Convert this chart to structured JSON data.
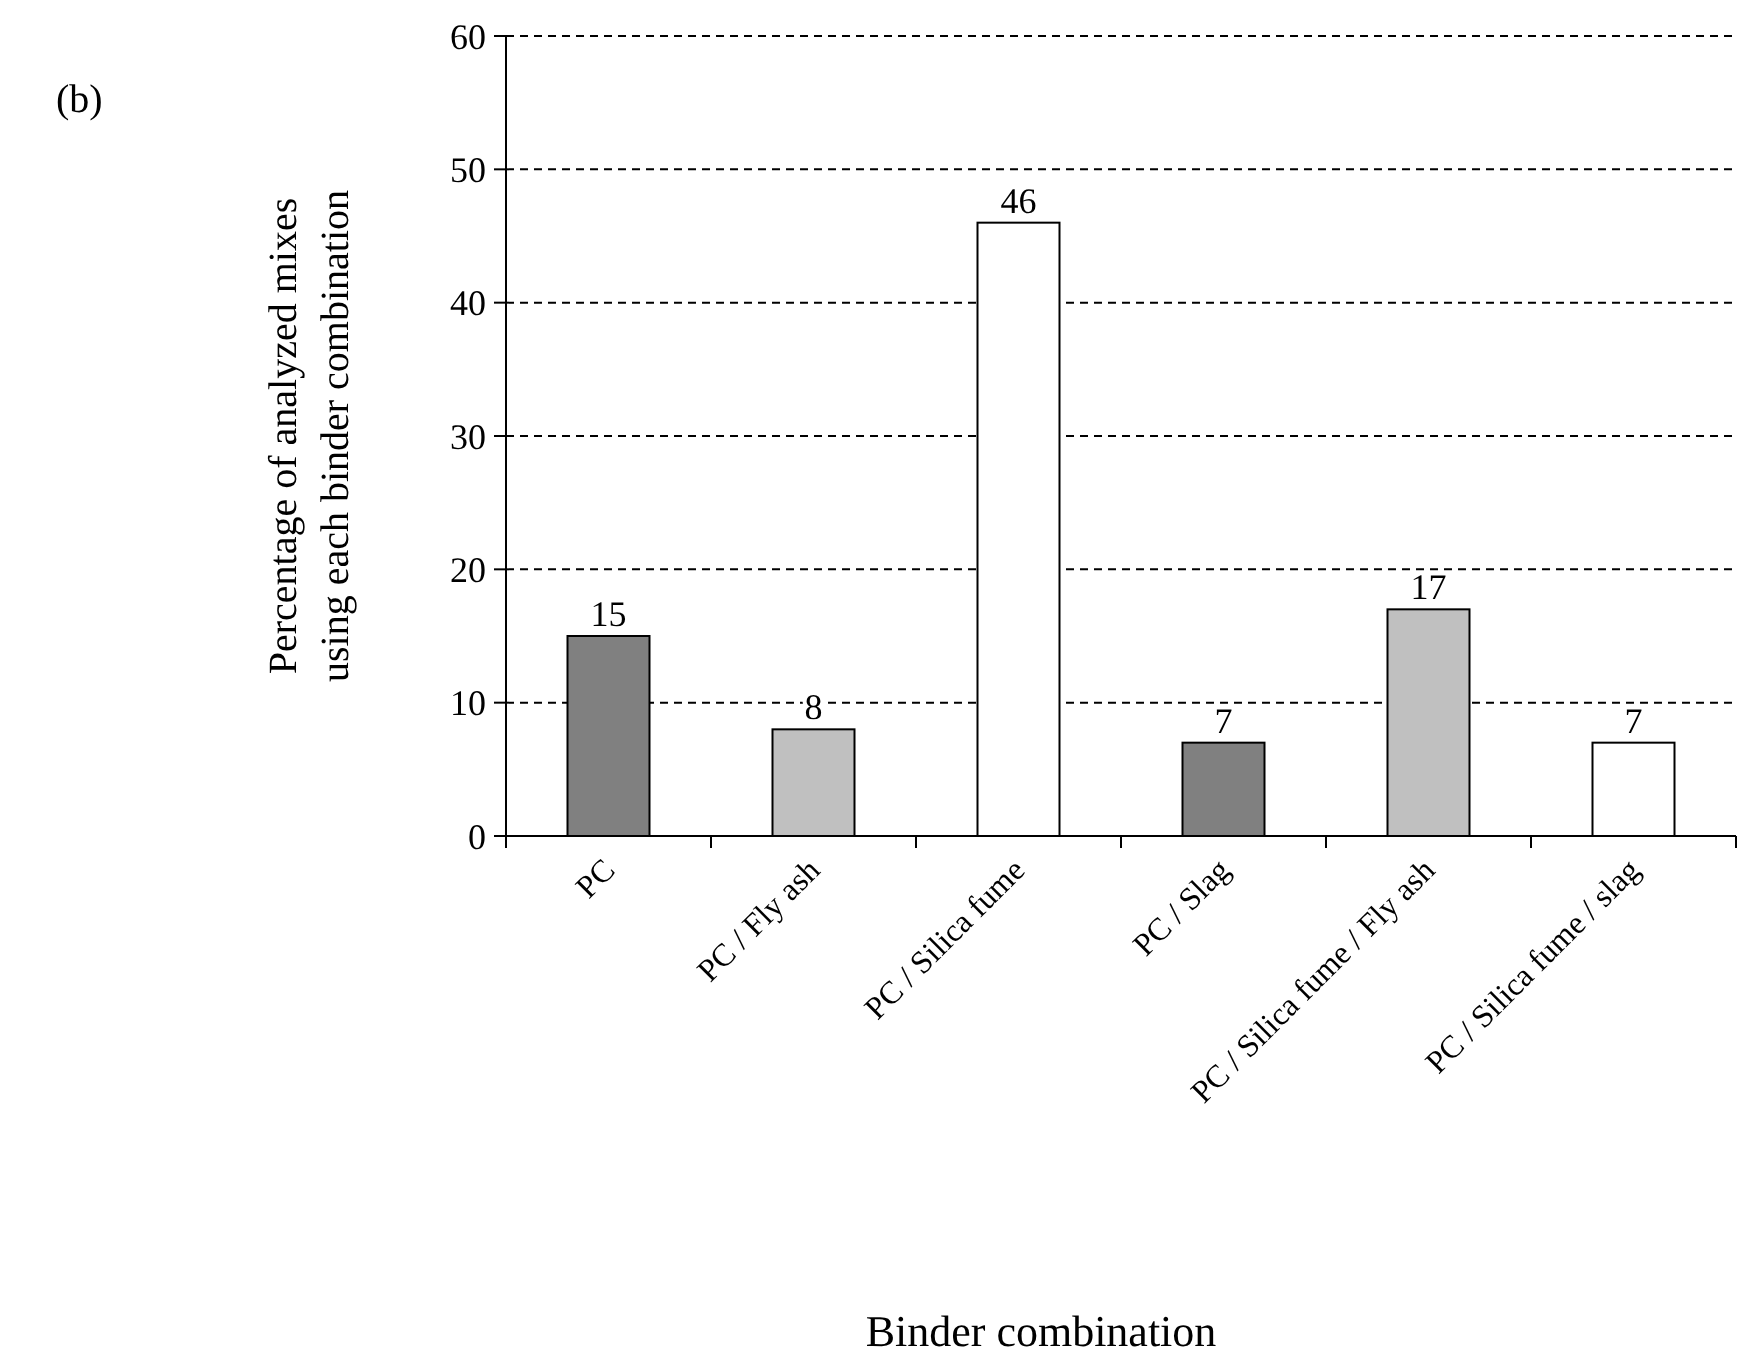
{
  "chart_data": {
    "type": "bar",
    "xlabel": "Binder combination",
    "ylabel": "Percentage of analyzed mixes\nusing each binder combination",
    "annotations": [
      "(b)"
    ],
    "categories": [
      "PC",
      "PC / Fly ash",
      "PC / Silica fume",
      "PC / Slag",
      "PC / Silica fume / Fly ash",
      "PC / Silica fume / slag"
    ],
    "values": [
      15,
      8,
      46,
      7,
      17,
      7
    ],
    "colors": [
      "#808080",
      "#c0c0c0",
      "#ffffff",
      "#808080",
      "#c0c0c0",
      "#ffffff"
    ],
    "ylim": [
      0,
      60
    ],
    "yticks": [
      0,
      10,
      20,
      30,
      40,
      50,
      60
    ],
    "grid": "y",
    "data_labels": true
  }
}
